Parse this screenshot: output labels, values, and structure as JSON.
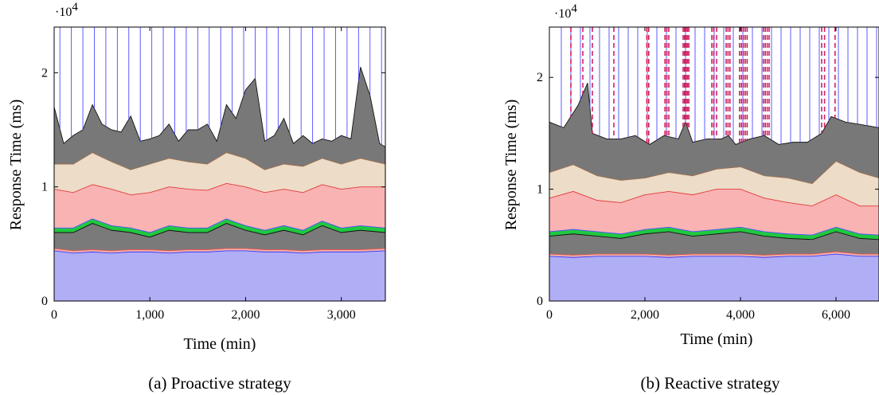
{
  "colors": {
    "base": "#b0aef5",
    "base_line": "#3a3aff",
    "thin_salmon": "#f4b3a8",
    "thin_salmon_line": "#e85555",
    "dark1": "#7a7a7a",
    "green": "#20c840",
    "blue_line": "#5050ff",
    "pink": "#f9b3b3",
    "pink_line": "#e33a3a",
    "beige": "#ecdcc8",
    "beige_line": "#a07050",
    "dark2": "#787878",
    "top_line": "#111111",
    "vline_solid": "#4a4aff",
    "vline_dashed": "#d02060"
  },
  "chart_data": [
    {
      "type": "area",
      "caption": "(a) Proactive strategy",
      "xlabel": "Time (min)",
      "ylabel": "Response Time (ms)",
      "y_multiplier": "·10",
      "y_multiplier_exp": "4",
      "xlim": [
        0,
        3460
      ],
      "ylim": [
        0,
        2.4
      ],
      "xticks": [
        0,
        1000,
        2000,
        3000
      ],
      "xtick_labels": [
        "0",
        "1,000",
        "2,000",
        "3,000"
      ],
      "yticks": [
        0,
        1,
        2
      ],
      "ytick_labels": [
        "0",
        "1",
        "2"
      ],
      "stacked_layers_top": [
        {
          "x": [
            0,
            200,
            400,
            600,
            800,
            1000,
            1200,
            1400,
            1600,
            1800,
            2000,
            2200,
            2400,
            2600,
            2800,
            3000,
            3200,
            3460
          ],
          "values": [
            0.44,
            0.42,
            0.43,
            0.42,
            0.43,
            0.43,
            0.42,
            0.43,
            0.43,
            0.44,
            0.44,
            0.43,
            0.43,
            0.42,
            0.43,
            0.43,
            0.43,
            0.44
          ]
        },
        {
          "x": [
            0,
            200,
            400,
            600,
            800,
            1000,
            1200,
            1400,
            1600,
            1800,
            2000,
            2200,
            2400,
            2600,
            2800,
            3000,
            3200,
            3460
          ],
          "values": [
            0.46,
            0.44,
            0.45,
            0.44,
            0.45,
            0.45,
            0.44,
            0.45,
            0.45,
            0.46,
            0.46,
            0.45,
            0.45,
            0.44,
            0.45,
            0.45,
            0.45,
            0.46
          ]
        },
        {
          "x": [
            0,
            200,
            400,
            600,
            800,
            1000,
            1200,
            1400,
            1600,
            1800,
            2000,
            2200,
            2400,
            2600,
            2800,
            3000,
            3200,
            3460
          ],
          "values": [
            0.6,
            0.6,
            0.68,
            0.62,
            0.6,
            0.56,
            0.62,
            0.6,
            0.6,
            0.68,
            0.62,
            0.58,
            0.62,
            0.58,
            0.66,
            0.6,
            0.62,
            0.6
          ]
        },
        {
          "x": [
            0,
            200,
            400,
            600,
            800,
            1000,
            1200,
            1400,
            1600,
            1800,
            2000,
            2200,
            2400,
            2600,
            2800,
            3000,
            3200,
            3460
          ],
          "values": [
            0.64,
            0.64,
            0.72,
            0.66,
            0.64,
            0.6,
            0.66,
            0.64,
            0.64,
            0.72,
            0.66,
            0.62,
            0.66,
            0.62,
            0.7,
            0.64,
            0.66,
            0.64
          ]
        },
        {
          "x": [
            0,
            200,
            400,
            600,
            800,
            1000,
            1200,
            1400,
            1600,
            1800,
            2000,
            2200,
            2400,
            2600,
            2800,
            3000,
            3200,
            3460
          ],
          "values": [
            0.98,
            0.95,
            1.02,
            0.98,
            0.93,
            0.95,
            1.0,
            0.98,
            0.97,
            1.03,
            1.0,
            0.95,
            0.98,
            0.95,
            1.02,
            0.98,
            1.0,
            1.0
          ]
        },
        {
          "x": [
            0,
            200,
            400,
            600,
            800,
            1000,
            1200,
            1400,
            1600,
            1800,
            2000,
            2200,
            2400,
            2600,
            2800,
            3000,
            3200,
            3460
          ],
          "values": [
            1.2,
            1.2,
            1.3,
            1.22,
            1.15,
            1.2,
            1.25,
            1.22,
            1.2,
            1.3,
            1.25,
            1.15,
            1.2,
            1.18,
            1.25,
            1.2,
            1.25,
            1.2
          ]
        },
        {
          "x": [
            0,
            100,
            200,
            300,
            400,
            500,
            600,
            700,
            800,
            900,
            1000,
            1100,
            1200,
            1300,
            1400,
            1500,
            1600,
            1700,
            1800,
            1900,
            2000,
            2100,
            2200,
            2300,
            2400,
            2500,
            2600,
            2700,
            2800,
            2900,
            3000,
            3100,
            3200,
            3300,
            3400,
            3460
          ],
          "values": [
            1.7,
            1.38,
            1.45,
            1.5,
            1.72,
            1.55,
            1.5,
            1.48,
            1.62,
            1.4,
            1.42,
            1.45,
            1.55,
            1.4,
            1.5,
            1.5,
            1.55,
            1.4,
            1.72,
            1.6,
            1.85,
            1.95,
            1.4,
            1.45,
            1.6,
            1.38,
            1.45,
            1.38,
            1.42,
            1.4,
            1.45,
            1.42,
            2.05,
            1.8,
            1.38,
            1.35
          ]
        }
      ],
      "vlines_solid_x": [
        60,
        180,
        300,
        420,
        540,
        660,
        780,
        900,
        1020,
        1140,
        1260,
        1380,
        1500,
        1620,
        1740,
        1860,
        1980,
        2100,
        2220,
        2340,
        2460,
        2580,
        2700,
        2820,
        2940,
        3060,
        3180,
        3300,
        3420
      ],
      "vlines_dashed_x": []
    },
    {
      "type": "area",
      "caption": "(b) Reactive strategy",
      "xlabel": "Time (min)",
      "ylabel": "Response Time (ms)",
      "y_multiplier": "·10",
      "y_multiplier_exp": "4",
      "xlim": [
        0,
        6900
      ],
      "ylim": [
        0,
        2.45
      ],
      "xticks": [
        0,
        2000,
        4000,
        6000
      ],
      "xtick_labels": [
        "0",
        "2,000",
        "4,000",
        "6,000"
      ],
      "yticks": [
        0,
        1,
        2
      ],
      "ytick_labels": [
        "0",
        "1",
        "2"
      ],
      "stacked_layers_top": [
        {
          "x": [
            0,
            500,
            1000,
            1500,
            2000,
            2500,
            3000,
            3500,
            4000,
            4500,
            5000,
            5500,
            6000,
            6500,
            6900
          ],
          "values": [
            0.4,
            0.39,
            0.4,
            0.4,
            0.4,
            0.39,
            0.4,
            0.4,
            0.4,
            0.39,
            0.4,
            0.4,
            0.42,
            0.4,
            0.4
          ]
        },
        {
          "x": [
            0,
            500,
            1000,
            1500,
            2000,
            2500,
            3000,
            3500,
            4000,
            4500,
            5000,
            5500,
            6000,
            6500,
            6900
          ],
          "values": [
            0.42,
            0.41,
            0.42,
            0.42,
            0.42,
            0.41,
            0.42,
            0.42,
            0.42,
            0.41,
            0.42,
            0.42,
            0.44,
            0.42,
            0.42
          ]
        },
        {
          "x": [
            0,
            500,
            1000,
            1500,
            2000,
            2500,
            3000,
            3500,
            4000,
            4500,
            5000,
            5500,
            6000,
            6500,
            6900
          ],
          "values": [
            0.58,
            0.6,
            0.58,
            0.56,
            0.6,
            0.62,
            0.58,
            0.6,
            0.62,
            0.58,
            0.56,
            0.55,
            0.62,
            0.56,
            0.55
          ]
        },
        {
          "x": [
            0,
            500,
            1000,
            1500,
            2000,
            2500,
            3000,
            3500,
            4000,
            4500,
            5000,
            5500,
            6000,
            6500,
            6900
          ],
          "values": [
            0.62,
            0.64,
            0.62,
            0.6,
            0.64,
            0.66,
            0.62,
            0.64,
            0.66,
            0.62,
            0.6,
            0.59,
            0.66,
            0.6,
            0.59
          ]
        },
        {
          "x": [
            0,
            500,
            1000,
            1500,
            2000,
            2500,
            3000,
            3500,
            4000,
            4500,
            5000,
            5500,
            6000,
            6500,
            6900
          ],
          "values": [
            0.92,
            0.98,
            0.9,
            0.88,
            0.95,
            0.98,
            0.95,
            1.0,
            1.0,
            0.92,
            0.88,
            0.85,
            0.95,
            0.85,
            0.85
          ]
        },
        {
          "x": [
            0,
            500,
            1000,
            1500,
            2000,
            2500,
            3000,
            3500,
            4000,
            4500,
            5000,
            5500,
            6000,
            6500,
            6900
          ],
          "values": [
            1.15,
            1.22,
            1.12,
            1.08,
            1.1,
            1.15,
            1.12,
            1.18,
            1.2,
            1.12,
            1.1,
            1.05,
            1.25,
            1.15,
            1.1
          ]
        },
        {
          "x": [
            0,
            300,
            600,
            800,
            900,
            1200,
            1500,
            1800,
            2100,
            2400,
            2700,
            2850,
            3000,
            3300,
            3600,
            3750,
            3900,
            4200,
            4500,
            4800,
            5100,
            5400,
            5700,
            5900,
            6200,
            6500,
            6900
          ],
          "values": [
            1.6,
            1.55,
            1.75,
            1.95,
            1.5,
            1.45,
            1.45,
            1.48,
            1.4,
            1.48,
            1.45,
            1.6,
            1.42,
            1.45,
            1.45,
            1.48,
            1.4,
            1.45,
            1.48,
            1.4,
            1.42,
            1.42,
            1.5,
            1.65,
            1.6,
            1.58,
            1.55
          ]
        }
      ],
      "vlines_solid_x": [
        250,
        450,
        650,
        850,
        1050,
        1250,
        1450,
        1650,
        1850,
        2050,
        2250,
        2450,
        2650,
        2850,
        3050,
        3250,
        3450,
        3650,
        3850,
        4050,
        4250,
        4450,
        4650,
        4850,
        5050,
        5250,
        5450,
        5650,
        5850,
        6050,
        6250,
        6450,
        6650,
        6850
      ],
      "vlines_dashed_x": [
        450,
        700,
        900,
        1350,
        2040,
        2080,
        2420,
        2460,
        2500,
        2800,
        2830,
        2860,
        2890,
        2920,
        3400,
        3440,
        3500,
        3700,
        3740,
        3780,
        3980,
        4020,
        4060,
        4100,
        4140,
        4480,
        4520,
        4560,
        4600,
        5700,
        5760,
        5980
      ]
    }
  ]
}
